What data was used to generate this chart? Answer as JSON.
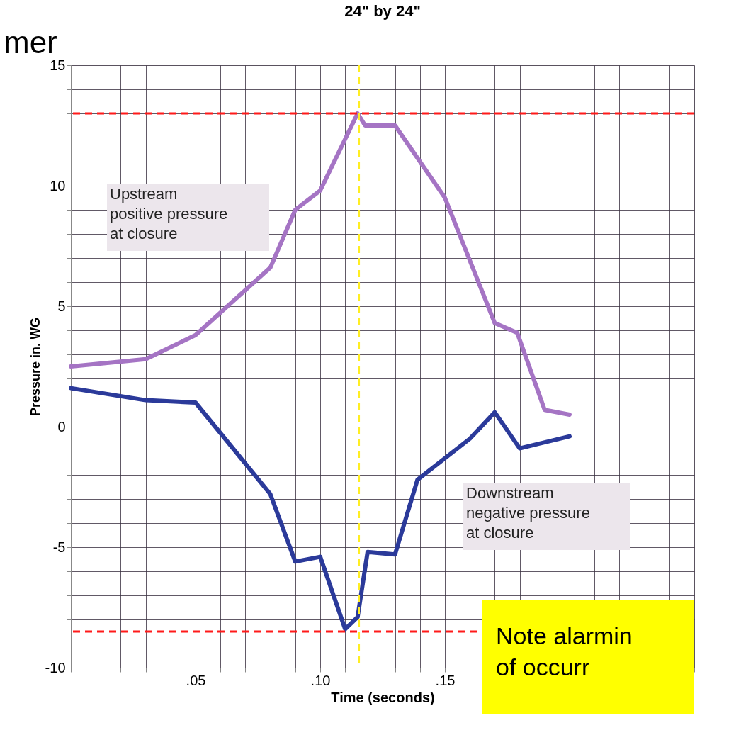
{
  "chart_data": {
    "type": "line",
    "title": "24\" by 24\"",
    "xlabel": "Time (seconds)",
    "ylabel": "Pressure in. WG",
    "series": [
      {
        "color": "#a574c4",
        "x": [
          0,
          0.03,
          0.05,
          0.08,
          0.09,
          0.1,
          0.115,
          0.118,
          0.13,
          0.15,
          0.17,
          0.179,
          0.19,
          0.2
        ],
        "values": [
          2.5,
          2.8,
          3.8,
          6.6,
          9.0,
          9.8,
          13.0,
          12.5,
          12.5,
          9.5,
          4.3,
          3.9,
          0.7,
          0.5
        ]
      },
      {
        "color": "#2b3a9a",
        "x": [
          0,
          0.03,
          0.05,
          0.08,
          0.09,
          0.1,
          0.11,
          0.115,
          0.119,
          0.13,
          0.139,
          0.16,
          0.17,
          0.18,
          0.2
        ],
        "values": [
          1.6,
          1.1,
          1.0,
          -2.8,
          -5.6,
          -5.4,
          -8.4,
          -7.9,
          -5.2,
          -5.3,
          -2.2,
          -0.5,
          0.6,
          -0.9,
          -0.4
        ]
      }
    ],
    "xlim": [
      0,
      0.25
    ],
    "ylim": [
      -10,
      15
    ],
    "xticks": [
      {
        "value": 0,
        "label": null
      },
      {
        "value": 0.01,
        "label": null
      },
      {
        "value": 0.02,
        "label": null
      },
      {
        "value": 0.03,
        "label": null
      },
      {
        "value": 0.04,
        "label": null
      },
      {
        "value": 0.05,
        "label": ".05"
      },
      {
        "value": 0.06,
        "label": null
      },
      {
        "value": 0.07,
        "label": null
      },
      {
        "value": 0.08,
        "label": null
      },
      {
        "value": 0.09,
        "label": null
      },
      {
        "value": 0.1,
        "label": ".10"
      },
      {
        "value": 0.11,
        "label": null
      },
      {
        "value": 0.12,
        "label": null
      },
      {
        "value": 0.13,
        "label": null
      },
      {
        "value": 0.14,
        "label": null
      },
      {
        "value": 0.15,
        "label": ".15"
      },
      {
        "value": 0.16,
        "label": null
      },
      {
        "value": 0.17,
        "label": null
      },
      {
        "value": 0.18,
        "label": null
      },
      {
        "value": 0.19,
        "label": null
      },
      {
        "value": 0.2,
        "label": null
      },
      {
        "value": 0.21,
        "label": null
      },
      {
        "value": 0.22,
        "label": null
      },
      {
        "value": 0.23,
        "label": null
      },
      {
        "value": 0.24,
        "label": null
      },
      {
        "value": 0.25,
        "label": null
      }
    ],
    "yticks": [
      -10,
      {
        "value": -9,
        "label": null
      },
      {
        "value": -8,
        "label": null
      },
      {
        "value": -7,
        "label": null
      },
      {
        "value": -6,
        "label": null
      },
      -5,
      {
        "value": -4,
        "label": null
      },
      {
        "value": -3,
        "label": null
      },
      {
        "value": -2,
        "label": null
      },
      {
        "value": -1,
        "label": null
      },
      0,
      {
        "value": 1,
        "label": null
      },
      {
        "value": 2,
        "label": null
      },
      {
        "value": 3,
        "label": null
      },
      {
        "value": 4,
        "label": null
      },
      5,
      {
        "value": 6,
        "label": null
      },
      {
        "value": 7,
        "label": null
      },
      {
        "value": 8,
        "label": null
      },
      {
        "value": 9,
        "label": null
      },
      10,
      {
        "value": 11,
        "label": null
      },
      {
        "value": 12,
        "label": null
      },
      {
        "value": 13,
        "label": null
      },
      {
        "value": 14,
        "label": null
      },
      15
    ],
    "grid": true,
    "line_style": "solid",
    "ref_lines": [
      {
        "axis": "y",
        "value": 13,
        "color": "#ff1a1a",
        "line_style": "dashed"
      },
      {
        "axis": "y",
        "value": -8.5,
        "color": "#ff1a1a",
        "line_style": "dashed"
      },
      {
        "axis": "x",
        "value": 0.1155,
        "color": "#ffee22",
        "line_style": "dashed"
      }
    ],
    "annotations": [
      "mer",
      "Note alarmin\nof occurr",
      "Upstream\npositive pressure\nat closure",
      "Downstream\nnegative pressure\nat closure"
    ]
  }
}
